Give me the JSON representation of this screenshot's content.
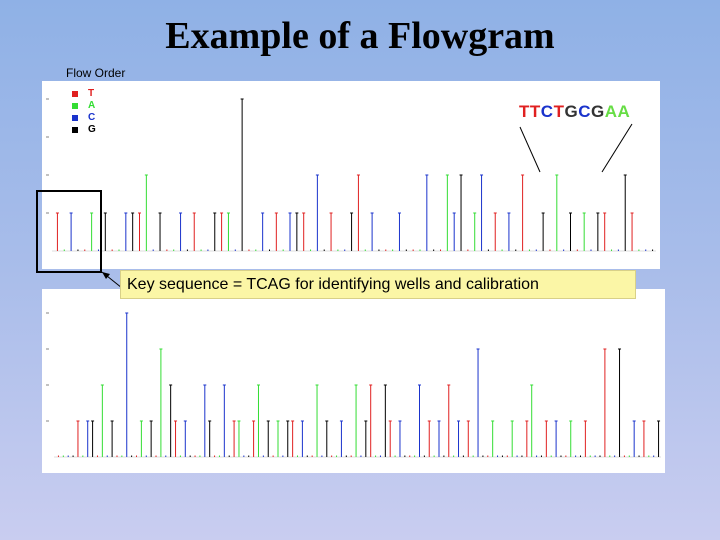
{
  "slide": {
    "title": "Example of a Flowgram"
  },
  "flow_order_label": "Flow Order",
  "legend": [
    {
      "letter": "T",
      "color": "#e02020"
    },
    {
      "letter": "A",
      "color": "#33dd33"
    },
    {
      "letter": "C",
      "color": "#1a33cc"
    },
    {
      "letter": "G",
      "color": "#000000"
    }
  ],
  "sequence_annotation": [
    {
      "letter": "T",
      "color": "#e02020"
    },
    {
      "letter": "T",
      "color": "#e02020"
    },
    {
      "letter": "C",
      "color": "#1a33cc"
    },
    {
      "letter": "T",
      "color": "#e02020"
    },
    {
      "letter": "G",
      "color": "#333333"
    },
    {
      "letter": "C",
      "color": "#1a33cc"
    },
    {
      "letter": "G",
      "color": "#333333"
    },
    {
      "letter": "A",
      "color": "#66dd44"
    },
    {
      "letter": "A",
      "color": "#66dd44"
    }
  ],
  "callout_text": "Key sequence = TCAG for identifying wells and calibration",
  "chart_data": [
    {
      "type": "bar",
      "title": "",
      "flow_order": [
        "T",
        "A",
        "C",
        "G"
      ],
      "series": [
        {
          "name": "T",
          "color": "#e02020"
        },
        {
          "name": "A",
          "color": "#33dd33"
        },
        {
          "name": "C",
          "color": "#1a33cc"
        },
        {
          "name": "G",
          "color": "#000000"
        }
      ],
      "ylim": [
        0,
        4
      ],
      "values": [
        1,
        0,
        1,
        0,
        0,
        1,
        0,
        1,
        0,
        0,
        1,
        1,
        1,
        2,
        0,
        1,
        0,
        0,
        1,
        0,
        1,
        0,
        0,
        1,
        1,
        1,
        0,
        4,
        0,
        0,
        1,
        0,
        1,
        0,
        1,
        1,
        1,
        0,
        2,
        0,
        1,
        0,
        0,
        1,
        2,
        0,
        1,
        0,
        0,
        0,
        1,
        0,
        0,
        0,
        2,
        0,
        0,
        2,
        1,
        2,
        0,
        1,
        2,
        0,
        1,
        0,
        1,
        0,
        2,
        0,
        0,
        1,
        0,
        2,
        0,
        1,
        0,
        1,
        0,
        1,
        1,
        0,
        0,
        2,
        1,
        0,
        0,
        0
      ]
    },
    {
      "type": "bar",
      "title": "",
      "flow_order": [
        "T",
        "A",
        "C",
        "G"
      ],
      "series": [
        {
          "name": "T",
          "color": "#e02020"
        },
        {
          "name": "A",
          "color": "#33dd33"
        },
        {
          "name": "C",
          "color": "#1a33cc"
        },
        {
          "name": "G",
          "color": "#000000"
        }
      ],
      "ylim": [
        0,
        4
      ],
      "values": [
        0,
        0,
        0,
        0,
        1,
        0,
        1,
        1,
        0,
        2,
        0,
        1,
        0,
        0,
        4,
        0,
        0,
        1,
        0,
        1,
        0,
        3,
        0,
        2,
        1,
        0,
        1,
        0,
        0,
        0,
        2,
        1,
        0,
        0,
        2,
        0,
        1,
        1,
        0,
        0,
        1,
        2,
        0,
        1,
        0,
        1,
        0,
        1,
        1,
        0,
        1,
        0,
        0,
        2,
        0,
        1,
        0,
        0,
        1,
        0,
        0,
        2,
        0,
        1,
        2,
        0,
        0,
        2,
        1,
        0,
        1,
        0,
        0,
        0,
        2,
        0,
        1,
        0,
        1,
        0,
        2,
        0,
        1,
        0,
        1,
        0,
        3,
        0,
        0,
        1,
        0,
        0,
        0,
        1,
        0,
        0,
        1,
        2,
        0,
        0,
        1,
        0,
        1,
        0,
        0,
        1,
        0,
        0,
        1,
        0,
        0,
        0,
        3,
        0,
        0,
        3,
        0,
        0,
        1,
        0,
        1,
        0,
        0,
        1
      ]
    }
  ]
}
